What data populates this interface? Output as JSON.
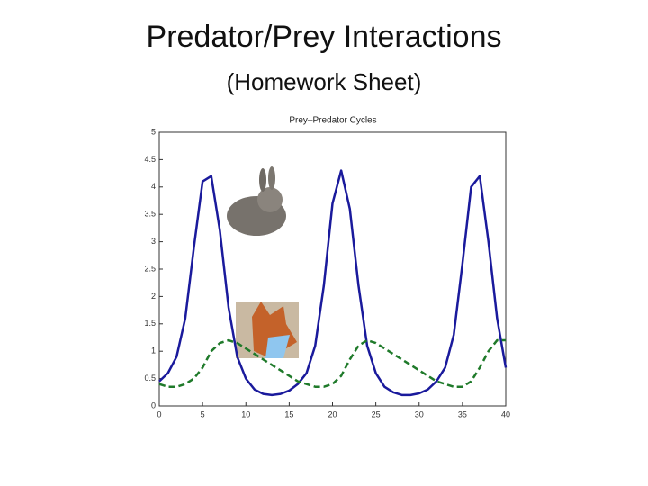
{
  "slide": {
    "title": "Predator/Prey Interactions",
    "subtitle": "(Homework Sheet)"
  },
  "chart_data": {
    "type": "line",
    "title": "Prey–Predator Cycles",
    "x": [
      0,
      1,
      2,
      3,
      4,
      5,
      6,
      7,
      8,
      9,
      10,
      11,
      12,
      13,
      14,
      15,
      16,
      17,
      18,
      19,
      20,
      21,
      22,
      23,
      24,
      25,
      26,
      27,
      28,
      29,
      30,
      31,
      32,
      33,
      34,
      35,
      36,
      37,
      38,
      39,
      40
    ],
    "series": [
      {
        "color": "#1a1a9c",
        "linestyle": "solid",
        "values": [
          0.45,
          0.6,
          0.9,
          1.6,
          2.9,
          4.1,
          4.2,
          3.2,
          1.8,
          0.9,
          0.5,
          0.3,
          0.22,
          0.2,
          0.22,
          0.28,
          0.4,
          0.6,
          1.1,
          2.2,
          3.7,
          4.3,
          3.6,
          2.2,
          1.1,
          0.6,
          0.35,
          0.25,
          0.2,
          0.2,
          0.23,
          0.3,
          0.45,
          0.7,
          1.3,
          2.6,
          4.0,
          4.2,
          3.0,
          1.6,
          0.7
        ]
      },
      {
        "color": "#1f7a2a",
        "linestyle": "dashed",
        "values": [
          0.4,
          0.35,
          0.35,
          0.4,
          0.5,
          0.7,
          1.0,
          1.15,
          1.2,
          1.15,
          1.05,
          0.95,
          0.85,
          0.75,
          0.65,
          0.55,
          0.45,
          0.4,
          0.35,
          0.35,
          0.4,
          0.55,
          0.85,
          1.1,
          1.2,
          1.15,
          1.05,
          0.95,
          0.85,
          0.75,
          0.65,
          0.55,
          0.45,
          0.4,
          0.35,
          0.35,
          0.45,
          0.7,
          1.0,
          1.2,
          1.2
        ]
      }
    ],
    "xlim": [
      0,
      40
    ],
    "xticks": [
      0,
      5,
      10,
      15,
      20,
      25,
      30,
      35,
      40
    ],
    "ylim": [
      0,
      5
    ],
    "yticks": [
      0,
      0.5,
      1,
      1.5,
      2,
      2.5,
      3,
      3.5,
      4,
      4.5,
      5
    ]
  }
}
